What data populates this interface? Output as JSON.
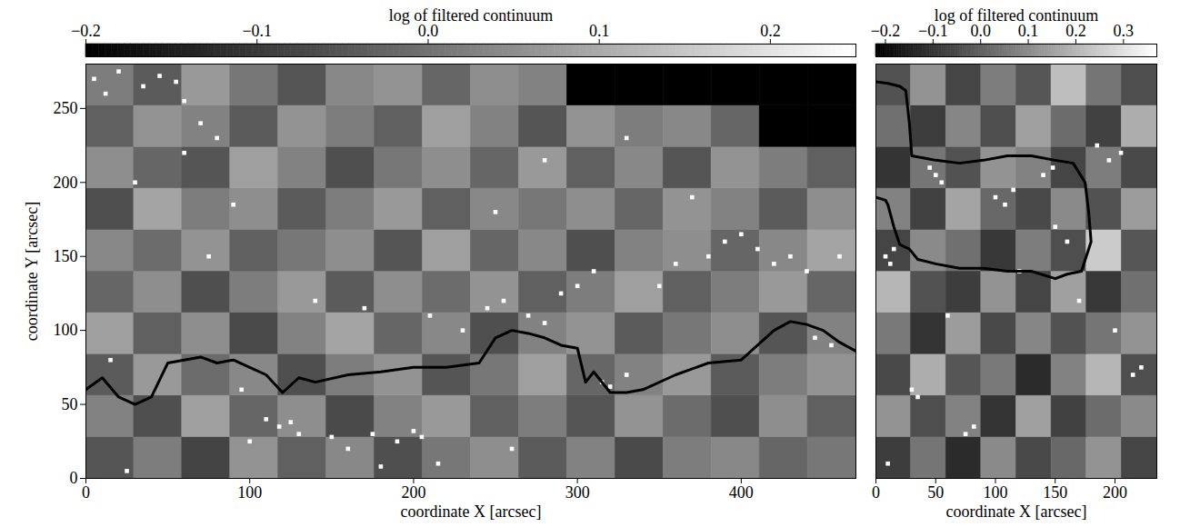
{
  "chart_data": [
    {
      "type": "heatmap",
      "xlabel": "coordinate X [arcsec]",
      "ylabel": "coordinate Y [arcsec]",
      "xlim": [
        0,
        470
      ],
      "ylim": [
        0,
        280
      ],
      "xticks": [
        0,
        100,
        200,
        300,
        400
      ],
      "yticks": [
        0,
        50,
        100,
        150,
        200,
        250
      ],
      "cells": {
        "x_edges": [
          0,
          29.375,
          58.75,
          88.125,
          117.5,
          146.875,
          176.25,
          205.625,
          235,
          264.375,
          293.75,
          323.125,
          352.5,
          381.875,
          411.25,
          440.625,
          470
        ],
        "y_edges": [
          0,
          28,
          56,
          84,
          112,
          140,
          168,
          196,
          224,
          252,
          280
        ],
        "z": [
          [
            -0.05,
            0.02,
            -0.08,
            0.06,
            -0.03,
            0.04,
            -0.06,
            0.01,
            0.05,
            -0.04,
            0.03,
            -0.07,
            0.02,
            0.04,
            -0.02,
            0.01
          ],
          [
            0.03,
            -0.06,
            0.08,
            -0.02,
            0.05,
            -0.07,
            0.03,
            0.07,
            -0.03,
            0.02,
            -0.05,
            0.06,
            -0.01,
            -0.06,
            0.05,
            -0.03
          ],
          [
            -0.04,
            0.07,
            -0.01,
            0.04,
            -0.06,
            0.02,
            0.06,
            -0.05,
            0.01,
            0.08,
            -0.02,
            0.03,
            0.07,
            -0.04,
            0.02,
            0.06
          ],
          [
            0.08,
            -0.03,
            0.05,
            -0.07,
            0.03,
            0.09,
            -0.02,
            0.04,
            -0.06,
            0.03,
            0.06,
            -0.04,
            0.01,
            0.05,
            -0.05,
            0.03
          ],
          [
            -0.02,
            0.05,
            -0.06,
            0.02,
            0.07,
            -0.04,
            0.05,
            -0.01,
            0.06,
            -0.03,
            0.02,
            0.08,
            -0.03,
            0.02,
            0.07,
            -0.02
          ],
          [
            0.04,
            -0.01,
            0.06,
            -0.03,
            0.01,
            0.05,
            -0.05,
            0.08,
            -0.02,
            0.04,
            -0.06,
            0.03,
            0.05,
            -0.02,
            0.04,
            0.09
          ],
          [
            -0.06,
            0.09,
            0.02,
            0.05,
            -0.04,
            0.02,
            0.07,
            -0.03,
            0.04,
            0.01,
            0.05,
            -0.02,
            0.06,
            0.03,
            -0.04,
            0.05
          ],
          [
            0.05,
            -0.02,
            -0.05,
            0.08,
            0.03,
            -0.06,
            0.01,
            0.05,
            -0.02,
            0.07,
            -0.03,
            0.04,
            -0.05,
            0.06,
            0.02,
            -0.03
          ],
          [
            -0.03,
            0.06,
            0.03,
            -0.04,
            0.06,
            0.02,
            -0.03,
            0.08,
            0.03,
            -0.05,
            0.06,
            0.02,
            0.04,
            -0.02,
            -0.2,
            -0.2
          ],
          [
            0.02,
            -0.04,
            0.07,
            0.01,
            -0.05,
            0.04,
            0.06,
            -0.02,
            0.05,
            0.03,
            -0.2,
            -0.2,
            -0.2,
            -0.2,
            -0.2,
            -0.2
          ]
        ]
      },
      "colorbar": {
        "label": "log of filtered continuum",
        "range": [
          -0.2,
          0.25
        ],
        "ticks": [
          {
            "value": -0.2,
            "label": "−0.2"
          },
          {
            "value": -0.1,
            "label": "−0.1"
          },
          {
            "value": 0,
            "label": "0.0"
          },
          {
            "value": 0.1,
            "label": "0.1"
          },
          {
            "value": 0.2,
            "label": "0.2"
          }
        ]
      },
      "bright_points": {
        "color": "#ffffff",
        "marker": "square",
        "x": [
          5,
          12,
          20,
          35,
          45,
          55,
          60,
          70,
          80,
          75,
          95,
          110,
          118,
          125,
          130,
          150,
          160,
          175,
          190,
          200,
          205,
          215,
          230,
          245,
          255,
          270,
          280,
          290,
          300,
          310,
          315,
          320,
          330,
          350,
          360,
          380,
          390,
          410,
          420,
          430,
          440,
          445,
          455,
          460,
          30,
          60,
          90,
          140,
          170,
          210,
          250,
          280,
          330,
          370,
          400,
          15,
          25,
          100,
          180,
          260
        ],
        "y": [
          270,
          260,
          275,
          265,
          272,
          268,
          255,
          240,
          230,
          150,
          60,
          40,
          35,
          38,
          30,
          28,
          20,
          30,
          25,
          32,
          28,
          10,
          100,
          115,
          120,
          110,
          105,
          125,
          130,
          140,
          65,
          62,
          70,
          130,
          145,
          150,
          160,
          155,
          145,
          150,
          140,
          95,
          90,
          150,
          200,
          220,
          185,
          120,
          115,
          110,
          180,
          215,
          230,
          190,
          165,
          80,
          5,
          25,
          8,
          20
        ]
      },
      "contour": {
        "color": "#000000",
        "x": [
          0,
          10,
          20,
          30,
          40,
          50,
          60,
          70,
          80,
          90,
          100,
          110,
          120,
          130,
          140,
          160,
          180,
          200,
          220,
          240,
          250,
          260,
          270,
          280,
          290,
          300,
          305,
          310,
          320,
          330,
          340,
          360,
          380,
          400,
          420,
          430,
          440,
          450,
          460,
          470
        ],
        "y": [
          60,
          68,
          55,
          50,
          55,
          78,
          80,
          82,
          78,
          80,
          75,
          70,
          58,
          68,
          65,
          70,
          72,
          75,
          75,
          78,
          95,
          100,
          98,
          95,
          90,
          88,
          65,
          72,
          58,
          58,
          60,
          70,
          78,
          80,
          100,
          106,
          104,
          100,
          92,
          86
        ]
      }
    },
    {
      "type": "heatmap",
      "xlabel": "coordinate X [arcsec]",
      "xlim": [
        0,
        235
      ],
      "ylim": [
        0,
        280
      ],
      "xticks": [
        0,
        50,
        100,
        150,
        200
      ],
      "tick_labels": "x",
      "cells": {
        "x_edges": [
          0,
          29.375,
          58.75,
          88.125,
          117.5,
          146.875,
          176.25,
          205.625,
          235
        ],
        "y_edges": [
          0,
          28,
          56,
          84,
          112,
          140,
          168,
          196,
          224,
          252,
          280
        ],
        "z": [
          [
            -0.08,
            0.05,
            -0.12,
            0.1,
            -0.05,
            0.02,
            0.12,
            -0.06
          ],
          [
            0.12,
            -0.04,
            0.08,
            -0.1,
            0.15,
            -0.07,
            0.03,
            0.1
          ],
          [
            -0.05,
            0.18,
            -0.02,
            0.06,
            -0.12,
            0.08,
            0.2,
            -0.04
          ],
          [
            0.06,
            -0.1,
            0.14,
            -0.05,
            0.09,
            -0.03,
            0.05,
            0.12
          ],
          [
            0.2,
            -0.03,
            -0.08,
            0.12,
            -0.06,
            0.15,
            -0.09,
            0.04
          ],
          [
            -0.06,
            0.1,
            0.04,
            -0.09,
            0.07,
            -0.04,
            0.25,
            -0.02
          ],
          [
            0.08,
            -0.07,
            0.16,
            0.02,
            -0.05,
            0.1,
            -0.03,
            0.14
          ],
          [
            -0.1,
            0.05,
            -0.03,
            0.12,
            0.08,
            -0.06,
            0.07,
            -0.05
          ],
          [
            0.04,
            -0.08,
            0.09,
            -0.04,
            0.15,
            0.03,
            -0.07,
            0.18
          ],
          [
            -0.03,
            0.12,
            -0.06,
            0.07,
            -0.02,
            0.22,
            0.05,
            -0.04
          ]
        ]
      },
      "colorbar": {
        "label": "log of filtered continuum",
        "range": [
          -0.22,
          0.37
        ],
        "ticks": [
          {
            "value": -0.2,
            "label": "−0.2"
          },
          {
            "value": -0.1,
            "label": "−0.1"
          },
          {
            "value": 0,
            "label": "0.0"
          },
          {
            "value": 0.1,
            "label": "0.1"
          },
          {
            "value": 0.2,
            "label": "0.2"
          },
          {
            "value": 0.3,
            "label": "0.3"
          }
        ]
      },
      "bright_points": {
        "color": "#ffffff",
        "marker": "square",
        "x": [
          8,
          12,
          15,
          45,
          50,
          55,
          100,
          108,
          115,
          140,
          148,
          185,
          195,
          205,
          30,
          35,
          75,
          82,
          150,
          160,
          170,
          215,
          222,
          10,
          60,
          120,
          200
        ],
        "y": [
          150,
          145,
          155,
          210,
          205,
          200,
          190,
          185,
          195,
          205,
          210,
          225,
          215,
          220,
          60,
          55,
          30,
          35,
          170,
          160,
          120,
          70,
          75,
          10,
          110,
          140,
          100
        ]
      },
      "contour": {
        "color": "#000000",
        "x": [
          0,
          10,
          20,
          25,
          28,
          30,
          50,
          70,
          90,
          110,
          130,
          150,
          165,
          175,
          178,
          180,
          176,
          172,
          160,
          150,
          130,
          110,
          90,
          70,
          50,
          35,
          28,
          20,
          15,
          10,
          8,
          0
        ],
        "y": [
          268,
          267,
          265,
          262,
          240,
          218,
          215,
          213,
          215,
          218,
          218,
          215,
          213,
          200,
          180,
          160,
          150,
          140,
          138,
          135,
          140,
          140,
          142,
          142,
          145,
          148,
          155,
          158,
          170,
          185,
          188,
          190
        ]
      }
    }
  ]
}
